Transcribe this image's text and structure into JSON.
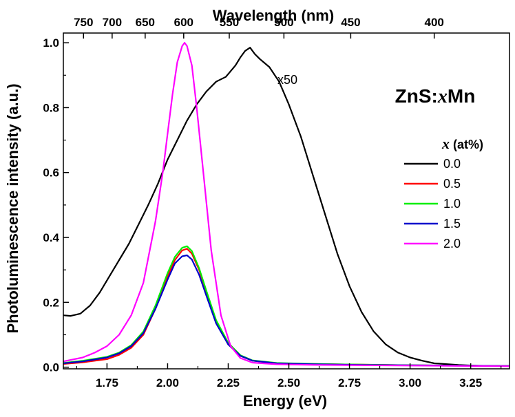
{
  "chart_data": {
    "type": "line",
    "xlabel": "Energy (eV)",
    "ylabel": "Photoluminescence intensity (a.u.)",
    "top_xlabel": "Wavelength (nm)",
    "xlim": [
      1.57,
      3.41
    ],
    "ylim": [
      -0.005,
      1.03
    ],
    "x_ticks": [
      1.75,
      2.0,
      2.25,
      2.5,
      2.75,
      3.0,
      3.25
    ],
    "x_tick_labels": [
      "1.75",
      "2.00",
      "2.25",
      "2.50",
      "2.75",
      "3.00",
      "3.25"
    ],
    "y_ticks": [
      0.0,
      0.2,
      0.4,
      0.6,
      0.8,
      1.0
    ],
    "y_tick_labels": [
      "0.0",
      "0.2",
      "0.4",
      "0.6",
      "0.8",
      "1.0"
    ],
    "top_ticks_nm": [
      750,
      700,
      650,
      600,
      550,
      500,
      450,
      400
    ],
    "top_tick_labels": [
      "750",
      "700",
      "650",
      "600",
      "550",
      "500",
      "450",
      "400"
    ],
    "sample_label_prefix": "ZnS:",
    "sample_label_var": "x",
    "sample_label_suffix": "Mn",
    "legend_title_var": "x",
    "legend_title_suffix": " (at%)",
    "annotation": "x50",
    "series": [
      {
        "name": "0.0",
        "color": "#000000",
        "x": [
          1.57,
          1.6,
          1.64,
          1.68,
          1.72,
          1.76,
          1.8,
          1.84,
          1.88,
          1.92,
          1.96,
          2.0,
          2.04,
          2.08,
          2.12,
          2.16,
          2.2,
          2.24,
          2.28,
          2.3,
          2.32,
          2.34,
          2.36,
          2.38,
          2.42,
          2.46,
          2.5,
          2.55,
          2.6,
          2.65,
          2.7,
          2.75,
          2.8,
          2.85,
          2.9,
          2.95,
          3.0,
          3.05,
          3.1,
          3.2,
          3.3,
          3.41
        ],
        "y": [
          0.16,
          0.158,
          0.165,
          0.19,
          0.23,
          0.28,
          0.33,
          0.38,
          0.44,
          0.5,
          0.565,
          0.64,
          0.7,
          0.76,
          0.81,
          0.85,
          0.88,
          0.895,
          0.93,
          0.955,
          0.975,
          0.985,
          0.965,
          0.95,
          0.925,
          0.88,
          0.81,
          0.71,
          0.59,
          0.47,
          0.35,
          0.25,
          0.17,
          0.11,
          0.07,
          0.045,
          0.03,
          0.02,
          0.012,
          0.007,
          0.004,
          0.003
        ]
      },
      {
        "name": "0.5",
        "color": "#ff0000",
        "x": [
          1.57,
          1.65,
          1.75,
          1.8,
          1.85,
          1.9,
          1.95,
          2.0,
          2.03,
          2.06,
          2.08,
          2.1,
          2.13,
          2.16,
          2.2,
          2.25,
          2.3,
          2.35,
          2.45,
          2.6,
          2.8,
          3.0,
          3.2,
          3.41
        ],
        "y": [
          0.01,
          0.015,
          0.025,
          0.038,
          0.06,
          0.1,
          0.18,
          0.28,
          0.33,
          0.36,
          0.365,
          0.35,
          0.3,
          0.23,
          0.14,
          0.07,
          0.035,
          0.02,
          0.012,
          0.01,
          0.008,
          0.006,
          0.005,
          0.004
        ]
      },
      {
        "name": "1.0",
        "color": "#00ee00",
        "x": [
          1.57,
          1.65,
          1.75,
          1.8,
          1.85,
          1.9,
          1.95,
          2.0,
          2.03,
          2.06,
          2.08,
          2.1,
          2.13,
          2.16,
          2.2,
          2.25,
          2.3,
          2.35,
          2.45,
          2.6,
          2.8,
          3.0,
          3.2,
          3.41
        ],
        "y": [
          0.013,
          0.02,
          0.032,
          0.045,
          0.068,
          0.11,
          0.19,
          0.29,
          0.34,
          0.368,
          0.373,
          0.358,
          0.305,
          0.235,
          0.145,
          0.075,
          0.037,
          0.021,
          0.013,
          0.01,
          0.008,
          0.006,
          0.005,
          0.004
        ]
      },
      {
        "name": "1.5",
        "color": "#0000cc",
        "x": [
          1.57,
          1.65,
          1.75,
          1.8,
          1.85,
          1.9,
          1.95,
          2.0,
          2.03,
          2.06,
          2.08,
          2.1,
          2.13,
          2.16,
          2.2,
          2.25,
          2.3,
          2.35,
          2.45,
          2.6,
          2.8,
          3.0,
          3.2,
          3.41
        ],
        "y": [
          0.012,
          0.018,
          0.03,
          0.043,
          0.065,
          0.105,
          0.18,
          0.27,
          0.32,
          0.342,
          0.345,
          0.332,
          0.285,
          0.22,
          0.135,
          0.07,
          0.035,
          0.02,
          0.012,
          0.009,
          0.007,
          0.006,
          0.005,
          0.004
        ]
      },
      {
        "name": "2.0",
        "color": "#ff00ff",
        "x": [
          1.57,
          1.65,
          1.7,
          1.75,
          1.8,
          1.85,
          1.9,
          1.95,
          1.98,
          2.0,
          2.02,
          2.04,
          2.06,
          2.07,
          2.08,
          2.1,
          2.12,
          2.15,
          2.18,
          2.22,
          2.26,
          2.3,
          2.35,
          2.45,
          2.6,
          2.8,
          3.0,
          3.2,
          3.41
        ],
        "y": [
          0.018,
          0.03,
          0.045,
          0.065,
          0.1,
          0.16,
          0.26,
          0.45,
          0.6,
          0.72,
          0.84,
          0.94,
          0.99,
          1.0,
          0.99,
          0.93,
          0.8,
          0.58,
          0.36,
          0.16,
          0.065,
          0.028,
          0.014,
          0.009,
          0.007,
          0.006,
          0.005,
          0.004,
          0.003
        ]
      }
    ]
  }
}
